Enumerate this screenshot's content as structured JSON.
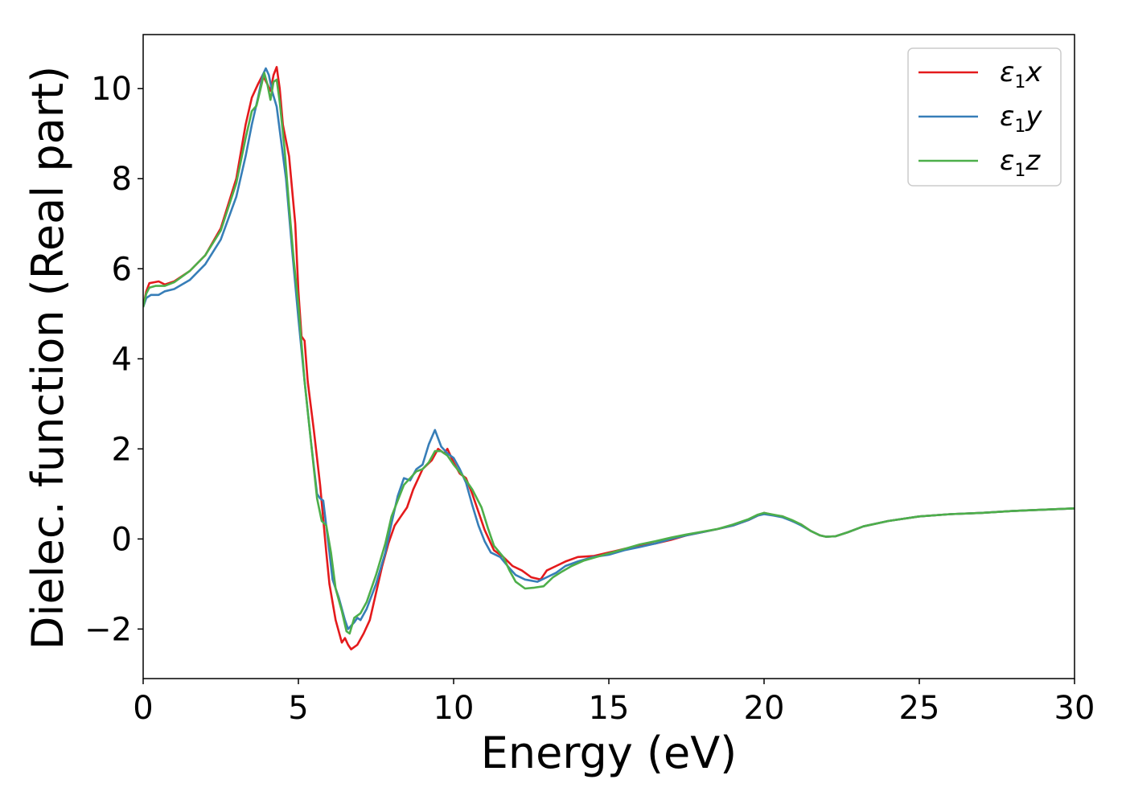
{
  "chart_data": {
    "type": "line",
    "xlabel": "Energy (eV)",
    "ylabel": "Dielec. function (Real part)",
    "xlim": [
      0,
      30
    ],
    "ylim": [
      -3.1,
      11.2
    ],
    "xticks": [
      0,
      5,
      10,
      15,
      20,
      25,
      30
    ],
    "yticks": [
      -2,
      0,
      2,
      4,
      6,
      8,
      10
    ],
    "grid": false,
    "legend_position": "top-right",
    "series": [
      {
        "name": "ε1x",
        "legend": {
          "base": "ε",
          "sub": "1",
          "suffix": "x"
        },
        "color": "#e41a1c",
        "points": [
          [
            0,
            5.15
          ],
          [
            0.1,
            5.5
          ],
          [
            0.2,
            5.68
          ],
          [
            0.35,
            5.7
          ],
          [
            0.5,
            5.72
          ],
          [
            0.7,
            5.65
          ],
          [
            1.0,
            5.72
          ],
          [
            1.5,
            5.95
          ],
          [
            2.0,
            6.3
          ],
          [
            2.5,
            6.9
          ],
          [
            3.0,
            8.0
          ],
          [
            3.3,
            9.2
          ],
          [
            3.5,
            9.8
          ],
          [
            3.7,
            10.1
          ],
          [
            3.85,
            10.3
          ],
          [
            4.0,
            10.1
          ],
          [
            4.1,
            9.95
          ],
          [
            4.2,
            10.3
          ],
          [
            4.3,
            10.48
          ],
          [
            4.4,
            10.0
          ],
          [
            4.5,
            9.2
          ],
          [
            4.7,
            8.5
          ],
          [
            4.9,
            7.0
          ],
          [
            5.0,
            5.5
          ],
          [
            5.1,
            4.5
          ],
          [
            5.2,
            4.4
          ],
          [
            5.3,
            3.5
          ],
          [
            5.5,
            2.4
          ],
          [
            5.7,
            1.2
          ],
          [
            5.9,
            -0.3
          ],
          [
            6.0,
            -1.0
          ],
          [
            6.2,
            -1.8
          ],
          [
            6.4,
            -2.3
          ],
          [
            6.5,
            -2.2
          ],
          [
            6.6,
            -2.35
          ],
          [
            6.7,
            -2.45
          ],
          [
            6.9,
            -2.35
          ],
          [
            7.1,
            -2.1
          ],
          [
            7.3,
            -1.8
          ],
          [
            7.5,
            -1.2
          ],
          [
            7.7,
            -0.6
          ],
          [
            7.9,
            -0.1
          ],
          [
            8.1,
            0.3
          ],
          [
            8.3,
            0.5
          ],
          [
            8.5,
            0.7
          ],
          [
            8.7,
            1.1
          ],
          [
            9.0,
            1.55
          ],
          [
            9.3,
            1.75
          ],
          [
            9.5,
            2.0
          ],
          [
            9.7,
            1.9
          ],
          [
            9.8,
            2.0
          ],
          [
            10.0,
            1.7
          ],
          [
            10.2,
            1.45
          ],
          [
            10.4,
            1.35
          ],
          [
            10.6,
            1.0
          ],
          [
            10.8,
            0.6
          ],
          [
            11.0,
            0.2
          ],
          [
            11.3,
            -0.25
          ],
          [
            11.6,
            -0.4
          ],
          [
            11.9,
            -0.6
          ],
          [
            12.2,
            -0.7
          ],
          [
            12.5,
            -0.85
          ],
          [
            12.8,
            -0.9
          ],
          [
            13.0,
            -0.7
          ],
          [
            13.3,
            -0.6
          ],
          [
            13.6,
            -0.5
          ],
          [
            14.0,
            -0.4
          ],
          [
            14.5,
            -0.38
          ],
          [
            15.0,
            -0.3
          ],
          [
            15.5,
            -0.22
          ],
          [
            16.0,
            -0.15
          ],
          [
            16.5,
            -0.1
          ],
          [
            17.0,
            -0.02
          ],
          [
            17.5,
            0.08
          ],
          [
            18.0,
            0.15
          ],
          [
            18.5,
            0.22
          ],
          [
            19.0,
            0.3
          ],
          [
            19.5,
            0.42
          ],
          [
            19.8,
            0.52
          ],
          [
            20.0,
            0.58
          ],
          [
            20.3,
            0.53
          ],
          [
            20.6,
            0.5
          ],
          [
            20.9,
            0.4
          ],
          [
            21.2,
            0.32
          ],
          [
            21.5,
            0.18
          ],
          [
            21.8,
            0.08
          ],
          [
            22.0,
            0.05
          ],
          [
            22.3,
            0.06
          ],
          [
            22.7,
            0.15
          ],
          [
            23.2,
            0.28
          ],
          [
            24.0,
            0.4
          ],
          [
            25.0,
            0.5
          ],
          [
            26.0,
            0.55
          ],
          [
            27.0,
            0.58
          ],
          [
            28.0,
            0.62
          ],
          [
            29.0,
            0.65
          ],
          [
            30.0,
            0.68
          ]
        ]
      },
      {
        "name": "ε1y",
        "legend": {
          "base": "ε",
          "sub": "1",
          "suffix": "y"
        },
        "color": "#377eb8",
        "points": [
          [
            0,
            5.15
          ],
          [
            0.1,
            5.35
          ],
          [
            0.25,
            5.42
          ],
          [
            0.5,
            5.42
          ],
          [
            0.7,
            5.5
          ],
          [
            1.0,
            5.55
          ],
          [
            1.5,
            5.75
          ],
          [
            2.0,
            6.1
          ],
          [
            2.5,
            6.65
          ],
          [
            3.0,
            7.6
          ],
          [
            3.3,
            8.5
          ],
          [
            3.5,
            9.2
          ],
          [
            3.7,
            9.8
          ],
          [
            3.85,
            10.3
          ],
          [
            3.95,
            10.45
          ],
          [
            4.05,
            10.3
          ],
          [
            4.15,
            9.95
          ],
          [
            4.3,
            9.6
          ],
          [
            4.45,
            8.8
          ],
          [
            4.6,
            8.0
          ],
          [
            4.8,
            6.4
          ],
          [
            5.0,
            4.9
          ],
          [
            5.2,
            3.5
          ],
          [
            5.4,
            2.2
          ],
          [
            5.6,
            1.0
          ],
          [
            5.7,
            0.9
          ],
          [
            5.8,
            0.85
          ],
          [
            6.0,
            -0.3
          ],
          [
            6.1,
            -0.9
          ],
          [
            6.3,
            -1.3
          ],
          [
            6.5,
            -1.8
          ],
          [
            6.6,
            -2.0
          ],
          [
            6.8,
            -1.85
          ],
          [
            6.9,
            -1.75
          ],
          [
            7.0,
            -1.8
          ],
          [
            7.2,
            -1.55
          ],
          [
            7.5,
            -1.0
          ],
          [
            7.8,
            -0.3
          ],
          [
            8.0,
            0.35
          ],
          [
            8.2,
            0.95
          ],
          [
            8.4,
            1.35
          ],
          [
            8.6,
            1.3
          ],
          [
            8.8,
            1.55
          ],
          [
            9.0,
            1.65
          ],
          [
            9.2,
            2.1
          ],
          [
            9.4,
            2.42
          ],
          [
            9.6,
            2.05
          ],
          [
            9.8,
            1.9
          ],
          [
            10.0,
            1.8
          ],
          [
            10.2,
            1.55
          ],
          [
            10.4,
            1.25
          ],
          [
            10.6,
            0.75
          ],
          [
            10.8,
            0.3
          ],
          [
            11.0,
            -0.05
          ],
          [
            11.2,
            -0.3
          ],
          [
            11.5,
            -0.4
          ],
          [
            11.8,
            -0.65
          ],
          [
            12.0,
            -0.8
          ],
          [
            12.3,
            -0.9
          ],
          [
            12.7,
            -0.95
          ],
          [
            13.0,
            -0.85
          ],
          [
            13.3,
            -0.75
          ],
          [
            13.6,
            -0.6
          ],
          [
            14.0,
            -0.5
          ],
          [
            14.5,
            -0.4
          ],
          [
            15.0,
            -0.35
          ],
          [
            15.5,
            -0.25
          ],
          [
            16.0,
            -0.18
          ],
          [
            16.5,
            -0.1
          ],
          [
            17.0,
            0.0
          ],
          [
            17.5,
            0.08
          ],
          [
            18.0,
            0.15
          ],
          [
            18.5,
            0.22
          ],
          [
            19.0,
            0.3
          ],
          [
            19.5,
            0.42
          ],
          [
            19.8,
            0.52
          ],
          [
            20.0,
            0.55
          ],
          [
            20.3,
            0.52
          ],
          [
            20.6,
            0.48
          ],
          [
            20.9,
            0.4
          ],
          [
            21.2,
            0.3
          ],
          [
            21.5,
            0.18
          ],
          [
            21.8,
            0.08
          ],
          [
            22.0,
            0.05
          ],
          [
            22.3,
            0.06
          ],
          [
            22.7,
            0.15
          ],
          [
            23.2,
            0.28
          ],
          [
            24.0,
            0.4
          ],
          [
            25.0,
            0.5
          ],
          [
            26.0,
            0.55
          ],
          [
            27.0,
            0.58
          ],
          [
            28.0,
            0.62
          ],
          [
            29.0,
            0.65
          ],
          [
            30.0,
            0.68
          ]
        ]
      },
      {
        "name": "ε1z",
        "legend": {
          "base": "ε",
          "sub": "1",
          "suffix": "z"
        },
        "color": "#4daf4a",
        "points": [
          [
            0,
            5.15
          ],
          [
            0.1,
            5.45
          ],
          [
            0.2,
            5.58
          ],
          [
            0.4,
            5.62
          ],
          [
            0.7,
            5.62
          ],
          [
            1.0,
            5.7
          ],
          [
            1.5,
            5.95
          ],
          [
            2.0,
            6.3
          ],
          [
            2.5,
            6.85
          ],
          [
            3.0,
            7.9
          ],
          [
            3.3,
            8.9
          ],
          [
            3.5,
            9.5
          ],
          [
            3.65,
            9.62
          ],
          [
            3.8,
            10.05
          ],
          [
            3.9,
            10.35
          ],
          [
            4.0,
            10.1
          ],
          [
            4.1,
            9.75
          ],
          [
            4.2,
            10.15
          ],
          [
            4.3,
            10.2
          ],
          [
            4.4,
            9.7
          ],
          [
            4.55,
            8.7
          ],
          [
            4.7,
            7.4
          ],
          [
            4.85,
            6.2
          ],
          [
            5.0,
            5.2
          ],
          [
            5.2,
            3.5
          ],
          [
            5.4,
            2.2
          ],
          [
            5.6,
            0.9
          ],
          [
            5.75,
            0.4
          ],
          [
            5.9,
            0.3
          ],
          [
            6.05,
            -0.3
          ],
          [
            6.2,
            -1.1
          ],
          [
            6.4,
            -1.6
          ],
          [
            6.55,
            -2.05
          ],
          [
            6.65,
            -2.1
          ],
          [
            6.8,
            -1.75
          ],
          [
            7.0,
            -1.65
          ],
          [
            7.2,
            -1.4
          ],
          [
            7.5,
            -0.8
          ],
          [
            7.8,
            -0.1
          ],
          [
            8.0,
            0.5
          ],
          [
            8.2,
            0.85
          ],
          [
            8.4,
            1.2
          ],
          [
            8.6,
            1.35
          ],
          [
            8.8,
            1.5
          ],
          [
            9.0,
            1.55
          ],
          [
            9.2,
            1.7
          ],
          [
            9.4,
            1.95
          ],
          [
            9.6,
            1.95
          ],
          [
            9.8,
            1.85
          ],
          [
            10.0,
            1.65
          ],
          [
            10.3,
            1.4
          ],
          [
            10.6,
            1.1
          ],
          [
            10.9,
            0.7
          ],
          [
            11.1,
            0.25
          ],
          [
            11.3,
            -0.15
          ],
          [
            11.6,
            -0.4
          ],
          [
            11.8,
            -0.7
          ],
          [
            12.0,
            -0.95
          ],
          [
            12.3,
            -1.1
          ],
          [
            12.6,
            -1.08
          ],
          [
            12.9,
            -1.05
          ],
          [
            13.2,
            -0.85
          ],
          [
            13.5,
            -0.72
          ],
          [
            13.8,
            -0.6
          ],
          [
            14.2,
            -0.48
          ],
          [
            14.6,
            -0.4
          ],
          [
            15.0,
            -0.32
          ],
          [
            15.5,
            -0.22
          ],
          [
            16.0,
            -0.12
          ],
          [
            16.5,
            -0.05
          ],
          [
            17.0,
            0.03
          ],
          [
            17.5,
            0.1
          ],
          [
            18.0,
            0.16
          ],
          [
            18.5,
            0.22
          ],
          [
            19.0,
            0.32
          ],
          [
            19.5,
            0.44
          ],
          [
            19.8,
            0.54
          ],
          [
            20.0,
            0.58
          ],
          [
            20.3,
            0.54
          ],
          [
            20.6,
            0.5
          ],
          [
            20.9,
            0.42
          ],
          [
            21.2,
            0.32
          ],
          [
            21.5,
            0.18
          ],
          [
            21.8,
            0.08
          ],
          [
            22.0,
            0.05
          ],
          [
            22.3,
            0.06
          ],
          [
            22.7,
            0.15
          ],
          [
            23.2,
            0.28
          ],
          [
            24.0,
            0.4
          ],
          [
            25.0,
            0.5
          ],
          [
            26.0,
            0.55
          ],
          [
            27.0,
            0.58
          ],
          [
            28.0,
            0.62
          ],
          [
            29.0,
            0.65
          ],
          [
            30.0,
            0.68
          ]
        ]
      }
    ]
  }
}
